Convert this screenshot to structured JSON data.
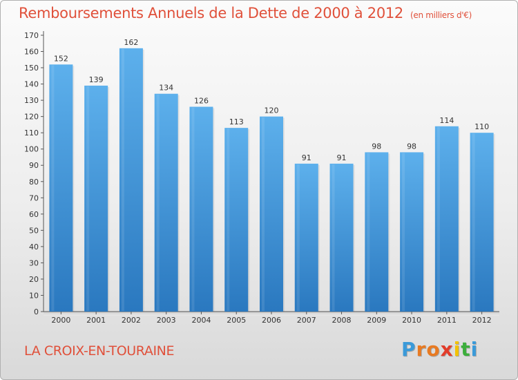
{
  "header": {
    "title": "Remboursements Annuels de la Dette de 2000 à 2012",
    "unit": "(en milliers d'€)"
  },
  "footer": {
    "commune": "LA CROIX-EN-TOURAINE",
    "logo_letters": [
      "P",
      "r",
      "o",
      "x",
      "i",
      "t",
      "i"
    ]
  },
  "colors": {
    "title": "#e0503a",
    "bar_top": "#5db0ec",
    "bar_bottom": "#2a78bf",
    "logo": [
      "#3a9ad9",
      "#e87a22",
      "#e87a22",
      "#e23c2a",
      "#f2c200",
      "#3cae3c",
      "#3a9ad9"
    ]
  },
  "chart_data": {
    "type": "bar",
    "title": "Remboursements Annuels de la Dette de 2000 à 2012",
    "xlabel": "",
    "ylabel": "",
    "categories": [
      "2000",
      "2001",
      "2002",
      "2003",
      "2004",
      "2005",
      "2006",
      "2007",
      "2008",
      "2009",
      "2010",
      "2011",
      "2012"
    ],
    "values": [
      152,
      139,
      162,
      134,
      126,
      113,
      120,
      91,
      91,
      98,
      98,
      114,
      110
    ],
    "ylim": [
      0,
      170
    ],
    "yticks": [
      0,
      10,
      20,
      30,
      40,
      50,
      60,
      70,
      80,
      90,
      100,
      110,
      120,
      130,
      140,
      150,
      160,
      170
    ],
    "grid": false,
    "legend": "none"
  }
}
